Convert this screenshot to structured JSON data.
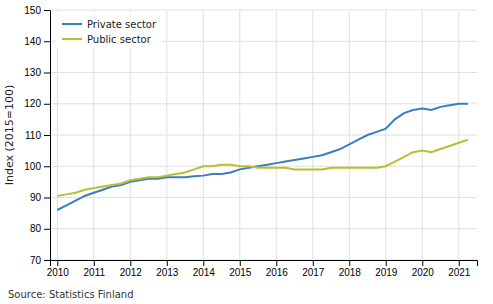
{
  "chart_data": {
    "type": "line",
    "ylabel": "Index (2015=100)",
    "source": "Source: Statistics Finland",
    "x": [
      2010.0,
      2010.25,
      2010.5,
      2010.75,
      2011.0,
      2011.25,
      2011.5,
      2011.75,
      2012.0,
      2012.25,
      2012.5,
      2012.75,
      2013.0,
      2013.25,
      2013.5,
      2013.75,
      2014.0,
      2014.25,
      2014.5,
      2014.75,
      2015.0,
      2015.25,
      2015.5,
      2015.75,
      2016.0,
      2016.25,
      2016.5,
      2016.75,
      2017.0,
      2017.25,
      2017.5,
      2017.75,
      2018.0,
      2018.25,
      2018.5,
      2018.75,
      2019.0,
      2019.25,
      2019.5,
      2019.75,
      2020.0,
      2020.25,
      2020.5,
      2020.75,
      2021.0,
      2021.25
    ],
    "series": [
      {
        "name": "Private sector",
        "color": "#3B7EC0",
        "values": [
          86.0,
          87.5,
          89.0,
          90.5,
          91.5,
          92.5,
          93.5,
          94.0,
          95.0,
          95.5,
          96.0,
          96.0,
          96.5,
          96.5,
          96.5,
          96.8,
          97.0,
          97.5,
          97.5,
          98.0,
          99.0,
          99.5,
          100.0,
          100.5,
          101.0,
          101.5,
          102.0,
          102.5,
          103.0,
          103.5,
          104.5,
          105.5,
          107.0,
          108.5,
          110.0,
          111.0,
          112.0,
          115.0,
          117.0,
          118.0,
          118.5,
          118.0,
          119.0,
          119.5,
          120.0,
          120.0
        ]
      },
      {
        "name": "Public sector",
        "color": "#BBBE2F",
        "values": [
          90.5,
          91.0,
          91.5,
          92.5,
          93.0,
          93.5,
          94.0,
          94.5,
          95.5,
          96.0,
          96.5,
          96.5,
          97.0,
          97.5,
          98.0,
          99.0,
          100.0,
          100.0,
          100.5,
          100.5,
          100.0,
          100.0,
          99.5,
          99.5,
          99.5,
          99.5,
          99.0,
          99.0,
          99.0,
          99.0,
          99.5,
          99.5,
          99.5,
          99.5,
          99.5,
          99.5,
          100.0,
          101.5,
          103.0,
          104.5,
          105.0,
          104.5,
          105.5,
          106.5,
          107.5,
          108.5
        ]
      }
    ],
    "xlim": [
      2009.8,
      2021.5
    ],
    "xticks": [
      2010,
      2011,
      2012,
      2013,
      2014,
      2015,
      2016,
      2017,
      2018,
      2019,
      2020,
      2021
    ],
    "ylim": [
      70,
      150
    ],
    "yticks": [
      70,
      80,
      90,
      100,
      110,
      120,
      130,
      140,
      150
    ],
    "grid": true,
    "legend": "upper left"
  }
}
